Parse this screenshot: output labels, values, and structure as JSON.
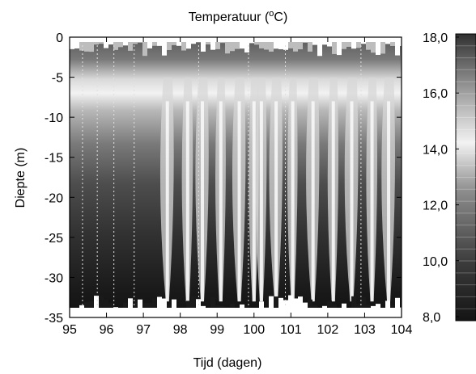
{
  "chart_data": {
    "type": "heatmap",
    "title_prefix": "Temperatuur (",
    "title_sup": "o",
    "title_suffix": "C)",
    "xlabel": "Tijd (dagen)",
    "ylabel": "Diepte (m)",
    "xlim": [
      95,
      104
    ],
    "ylim": [
      -35,
      0
    ],
    "xticks": [
      "95",
      "96",
      "97",
      "98",
      "99",
      "100",
      "101",
      "102",
      "103",
      "104"
    ],
    "yticks": [
      "0",
      "-5",
      "-10",
      "-15",
      "-20",
      "-25",
      "-30",
      "-35"
    ],
    "colorbar": {
      "range": [
        8.0,
        18.0
      ],
      "ticks": [
        "18,0",
        "16,0",
        "14,0",
        "12,0",
        "10,0",
        "8,0"
      ],
      "colors": {
        "cold": "#151515",
        "mid": "#6a6a6a",
        "warm": "#f4f4f4"
      }
    },
    "day_cycle_minima_days": [
      97.65,
      98.2,
      98.6,
      99.1,
      99.6,
      99.95,
      100.2,
      100.55,
      101.05,
      101.6,
      102.15,
      102.65,
      103.2,
      103.6
    ],
    "plume_days": [
      97.65,
      98.2,
      98.6,
      99.1,
      99.6,
      100.0,
      100.2,
      100.6,
      101.05,
      101.6,
      102.15,
      102.65,
      103.2,
      103.65
    ]
  }
}
